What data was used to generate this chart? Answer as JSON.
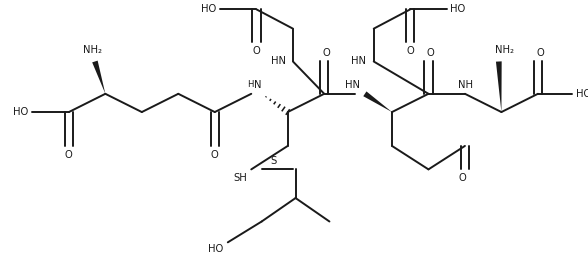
{
  "bg": "#ffffff",
  "lc": "#1a1a1a",
  "lw": 1.4,
  "fs": 7.2,
  "figsize": [
    5.88,
    2.71
  ],
  "dpi": 100,
  "xlim": [
    -0.5,
    10.5
  ],
  "ylim": [
    -0.3,
    4.9
  ]
}
